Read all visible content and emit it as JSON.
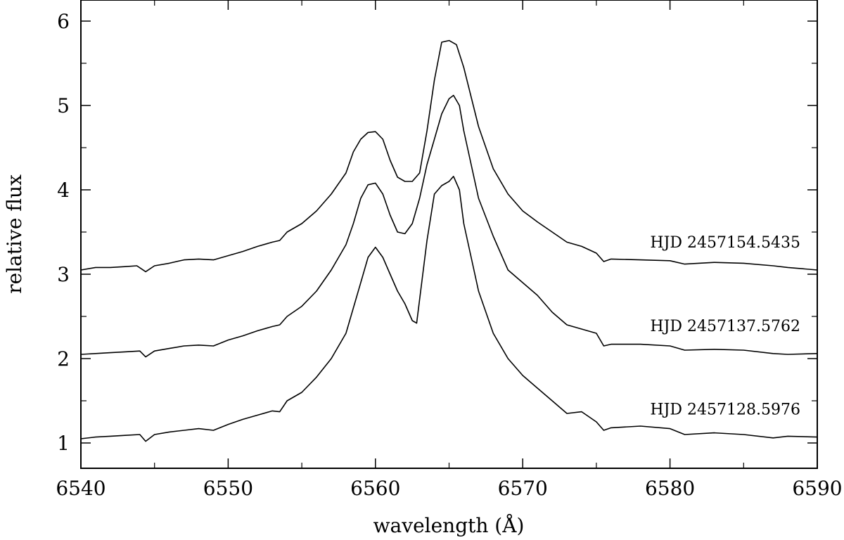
{
  "chart_data": {
    "type": "line",
    "title": "",
    "xlabel": "wavelength (Å)",
    "ylabel": "relative flux",
    "xlim": [
      6540,
      6590
    ],
    "ylim": [
      0.7,
      6.25
    ],
    "xticks": [
      6540,
      6550,
      6560,
      6570,
      6580,
      6590
    ],
    "yticks": [
      1,
      2,
      3,
      4,
      5,
      6
    ],
    "grid": false,
    "series": [
      {
        "name": "HJD 2457154.5435",
        "points": [
          [
            6540,
            3.05
          ],
          [
            6541,
            3.08
          ],
          [
            6542,
            3.08
          ],
          [
            6543,
            3.09
          ],
          [
            6543.8,
            3.1
          ],
          [
            6544.4,
            3.03
          ],
          [
            6545,
            3.1
          ],
          [
            6546,
            3.13
          ],
          [
            6547,
            3.17
          ],
          [
            6548,
            3.18
          ],
          [
            6549,
            3.17
          ],
          [
            6550,
            3.22
          ],
          [
            6551,
            3.27
          ],
          [
            6552,
            3.33
          ],
          [
            6553,
            3.38
          ],
          [
            6553.5,
            3.4
          ],
          [
            6554,
            3.5
          ],
          [
            6555,
            3.6
          ],
          [
            6556,
            3.75
          ],
          [
            6557,
            3.95
          ],
          [
            6558,
            4.2
          ],
          [
            6558.5,
            4.45
          ],
          [
            6559,
            4.6
          ],
          [
            6559.5,
            4.68
          ],
          [
            6560,
            4.69
          ],
          [
            6560.5,
            4.6
          ],
          [
            6561,
            4.35
          ],
          [
            6561.5,
            4.15
          ],
          [
            6562,
            4.1
          ],
          [
            6562.5,
            4.1
          ],
          [
            6563,
            4.2
          ],
          [
            6563.5,
            4.7
          ],
          [
            6564,
            5.3
          ],
          [
            6564.5,
            5.75
          ],
          [
            6565,
            5.77
          ],
          [
            6565.5,
            5.72
          ],
          [
            6566,
            5.45
          ],
          [
            6566.5,
            5.1
          ],
          [
            6567,
            4.75
          ],
          [
            6568,
            4.25
          ],
          [
            6569,
            3.95
          ],
          [
            6570,
            3.75
          ],
          [
            6571,
            3.62
          ],
          [
            6572,
            3.5
          ],
          [
            6573,
            3.38
          ],
          [
            6574,
            3.33
          ],
          [
            6575,
            3.25
          ],
          [
            6575.5,
            3.15
          ],
          [
            6576,
            3.18
          ],
          [
            6578,
            3.17
          ],
          [
            6580,
            3.16
          ],
          [
            6581,
            3.12
          ],
          [
            6583,
            3.14
          ],
          [
            6585,
            3.13
          ],
          [
            6587,
            3.1
          ],
          [
            6588,
            3.08
          ],
          [
            6590,
            3.05
          ]
        ]
      },
      {
        "name": "HJD 2457137.5762",
        "points": [
          [
            6540,
            2.05
          ],
          [
            6541,
            2.06
          ],
          [
            6542,
            2.07
          ],
          [
            6543,
            2.08
          ],
          [
            6544,
            2.09
          ],
          [
            6544.4,
            2.02
          ],
          [
            6545,
            2.09
          ],
          [
            6546,
            2.12
          ],
          [
            6547,
            2.15
          ],
          [
            6548,
            2.16
          ],
          [
            6549,
            2.15
          ],
          [
            6550,
            2.22
          ],
          [
            6551,
            2.27
          ],
          [
            6552,
            2.33
          ],
          [
            6553,
            2.38
          ],
          [
            6553.5,
            2.4
          ],
          [
            6554,
            2.5
          ],
          [
            6555,
            2.62
          ],
          [
            6556,
            2.8
          ],
          [
            6557,
            3.05
          ],
          [
            6558,
            3.35
          ],
          [
            6558.5,
            3.6
          ],
          [
            6559,
            3.9
          ],
          [
            6559.5,
            4.06
          ],
          [
            6560,
            4.08
          ],
          [
            6560.5,
            3.95
          ],
          [
            6561,
            3.7
          ],
          [
            6561.5,
            3.5
          ],
          [
            6562,
            3.48
          ],
          [
            6562.5,
            3.6
          ],
          [
            6563,
            3.9
          ],
          [
            6563.5,
            4.3
          ],
          [
            6564,
            4.6
          ],
          [
            6564.5,
            4.9
          ],
          [
            6565,
            5.08
          ],
          [
            6565.3,
            5.12
          ],
          [
            6565.7,
            5.0
          ],
          [
            6566,
            4.7
          ],
          [
            6566.5,
            4.3
          ],
          [
            6567,
            3.9
          ],
          [
            6568,
            3.45
          ],
          [
            6569,
            3.05
          ],
          [
            6570,
            2.9
          ],
          [
            6571,
            2.75
          ],
          [
            6572,
            2.55
          ],
          [
            6573,
            2.4
          ],
          [
            6574,
            2.35
          ],
          [
            6575,
            2.3
          ],
          [
            6575.5,
            2.15
          ],
          [
            6576,
            2.17
          ],
          [
            6578,
            2.17
          ],
          [
            6580,
            2.15
          ],
          [
            6581,
            2.1
          ],
          [
            6583,
            2.11
          ],
          [
            6585,
            2.1
          ],
          [
            6587,
            2.06
          ],
          [
            6588,
            2.05
          ],
          [
            6590,
            2.06
          ]
        ]
      },
      {
        "name": "HJD 2457128.5976",
        "points": [
          [
            6540,
            1.05
          ],
          [
            6541,
            1.07
          ],
          [
            6542,
            1.08
          ],
          [
            6543,
            1.09
          ],
          [
            6544,
            1.1
          ],
          [
            6544.4,
            1.02
          ],
          [
            6545,
            1.1
          ],
          [
            6546,
            1.13
          ],
          [
            6547,
            1.15
          ],
          [
            6548,
            1.17
          ],
          [
            6549,
            1.15
          ],
          [
            6550,
            1.22
          ],
          [
            6551,
            1.28
          ],
          [
            6552,
            1.33
          ],
          [
            6553,
            1.38
          ],
          [
            6553.5,
            1.37
          ],
          [
            6554,
            1.5
          ],
          [
            6555,
            1.6
          ],
          [
            6556,
            1.78
          ],
          [
            6557,
            2.0
          ],
          [
            6558,
            2.3
          ],
          [
            6558.5,
            2.6
          ],
          [
            6559,
            2.9
          ],
          [
            6559.5,
            3.2
          ],
          [
            6560,
            3.32
          ],
          [
            6560.5,
            3.2
          ],
          [
            6561,
            3.0
          ],
          [
            6561.5,
            2.8
          ],
          [
            6562,
            2.65
          ],
          [
            6562.5,
            2.45
          ],
          [
            6562.8,
            2.42
          ],
          [
            6563,
            2.7
          ],
          [
            6563.5,
            3.4
          ],
          [
            6564,
            3.95
          ],
          [
            6564.5,
            4.05
          ],
          [
            6565,
            4.1
          ],
          [
            6565.3,
            4.16
          ],
          [
            6565.7,
            4.0
          ],
          [
            6566,
            3.6
          ],
          [
            6566.5,
            3.2
          ],
          [
            6567,
            2.8
          ],
          [
            6568,
            2.3
          ],
          [
            6569,
            2.0
          ],
          [
            6570,
            1.8
          ],
          [
            6571,
            1.65
          ],
          [
            6572,
            1.5
          ],
          [
            6573,
            1.35
          ],
          [
            6574,
            1.37
          ],
          [
            6575,
            1.25
          ],
          [
            6575.5,
            1.15
          ],
          [
            6576,
            1.18
          ],
          [
            6578,
            1.2
          ],
          [
            6580,
            1.17
          ],
          [
            6581,
            1.1
          ],
          [
            6583,
            1.12
          ],
          [
            6585,
            1.1
          ],
          [
            6587,
            1.06
          ],
          [
            6588,
            1.08
          ],
          [
            6590,
            1.07
          ]
        ]
      }
    ]
  }
}
